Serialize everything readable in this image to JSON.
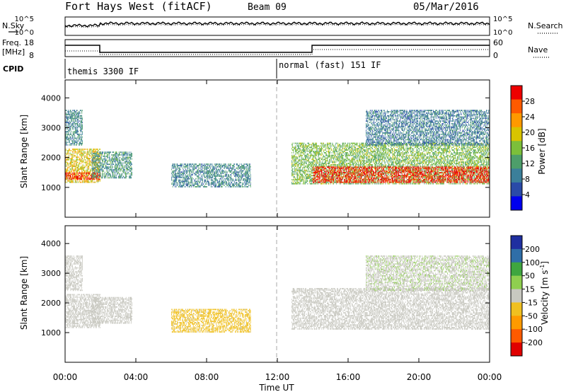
{
  "header": {
    "title": "Fort Hays West (fitACF)",
    "beam": "Beam 09",
    "date": "05/Mar/2016"
  },
  "noise_panel": {
    "left_label": "N.Sky",
    "right_label": "N.Search",
    "left_ticks": [
      "10^5",
      "10^0"
    ],
    "right_ticks": [
      "10^5",
      "10^0"
    ]
  },
  "freq_panel": {
    "left_label_1": "Freq.",
    "left_label_2": "[MHz]",
    "right_label": "Nave",
    "left_ticks": [
      "18",
      "8"
    ],
    "right_ticks": [
      "60",
      "0"
    ]
  },
  "cpid": {
    "label": "CPID",
    "modes": [
      {
        "name": "themis 3300 IF",
        "start_hour": 0,
        "end_hour": 12
      },
      {
        "name": "normal (fast) 151 IF",
        "start_hour": 12,
        "end_hour": 24
      }
    ]
  },
  "colors": {
    "power_scale": [
      "#0000ee",
      "#2a4aa8",
      "#3b7f9a",
      "#4d9e6a",
      "#7cbf3a",
      "#d8c400",
      "#ff9900",
      "#ff5a00",
      "#ee0000"
    ],
    "velocity_scale": [
      "#1f2fa0",
      "#2f6ea8",
      "#3fa63f",
      "#8fcf4f",
      "#c8c8c0",
      "#f0c020",
      "#ff9a00",
      "#ff5a00",
      "#e00000"
    ]
  },
  "chart_data": [
    {
      "type": "heatmap",
      "name": "Power",
      "ylabel": "Slant Range [km]",
      "xlabel": "",
      "x_range_hours": [
        0,
        24
      ],
      "ylim": [
        0,
        4600
      ],
      "y_ticks": [
        1000,
        2000,
        3000,
        4000
      ],
      "colorbar": {
        "label": "Power [dB]",
        "ticks": [
          4,
          8,
          12,
          16,
          20,
          24,
          28
        ],
        "range": [
          0,
          32
        ]
      },
      "regions": [
        {
          "t0": 0.0,
          "t1": 2.0,
          "r0": 1150,
          "r1": 2300,
          "level": 20
        },
        {
          "t0": 0.0,
          "t1": 2.0,
          "r0": 1250,
          "r1": 1500,
          "level": 30
        },
        {
          "t0": 0.0,
          "t1": 1.0,
          "r0": 2400,
          "r1": 3600,
          "level": 10
        },
        {
          "t0": 1.5,
          "t1": 3.8,
          "r0": 1300,
          "r1": 2200,
          "level": 11
        },
        {
          "t0": 6.0,
          "t1": 10.5,
          "r0": 1000,
          "r1": 1800,
          "level": 10
        },
        {
          "t0": 12.8,
          "t1": 24.0,
          "r0": 1100,
          "r1": 2500,
          "level": 15
        },
        {
          "t0": 14.0,
          "t1": 24.0,
          "r0": 1150,
          "r1": 1700,
          "level": 30
        },
        {
          "t0": 17.0,
          "t1": 24.0,
          "r0": 2400,
          "r1": 3600,
          "level": 9
        }
      ]
    },
    {
      "type": "heatmap",
      "name": "Velocity",
      "ylabel": "Slant Range [km]",
      "xlabel": "Time UT",
      "x_range_hours": [
        0,
        24
      ],
      "x_ticks": [
        "00:00",
        "04:00",
        "08:00",
        "12:00",
        "16:00",
        "20:00",
        "00:00"
      ],
      "ylim": [
        0,
        4600
      ],
      "y_ticks": [
        1000,
        2000,
        3000,
        4000
      ],
      "colorbar": {
        "label": "Velocity [m s^-1]",
        "ticks": [
          200,
          100,
          50,
          15,
          -15,
          -50,
          -100,
          -200
        ],
        "range": [
          -250,
          250
        ]
      },
      "regions": [
        {
          "t0": 0.0,
          "t1": 2.0,
          "r0": 1150,
          "r1": 2300,
          "level": 0
        },
        {
          "t0": 0.0,
          "t1": 1.0,
          "r0": 2400,
          "r1": 3600,
          "level": 0
        },
        {
          "t0": 1.5,
          "t1": 3.8,
          "r0": 1300,
          "r1": 2200,
          "level": 0
        },
        {
          "t0": 6.0,
          "t1": 10.5,
          "r0": 1000,
          "r1": 1800,
          "level": -40
        },
        {
          "t0": 12.8,
          "t1": 24.0,
          "r0": 1100,
          "r1": 2500,
          "level": 0
        },
        {
          "t0": 17.0,
          "t1": 24.0,
          "r0": 2400,
          "r1": 3600,
          "level": 20
        }
      ]
    }
  ]
}
